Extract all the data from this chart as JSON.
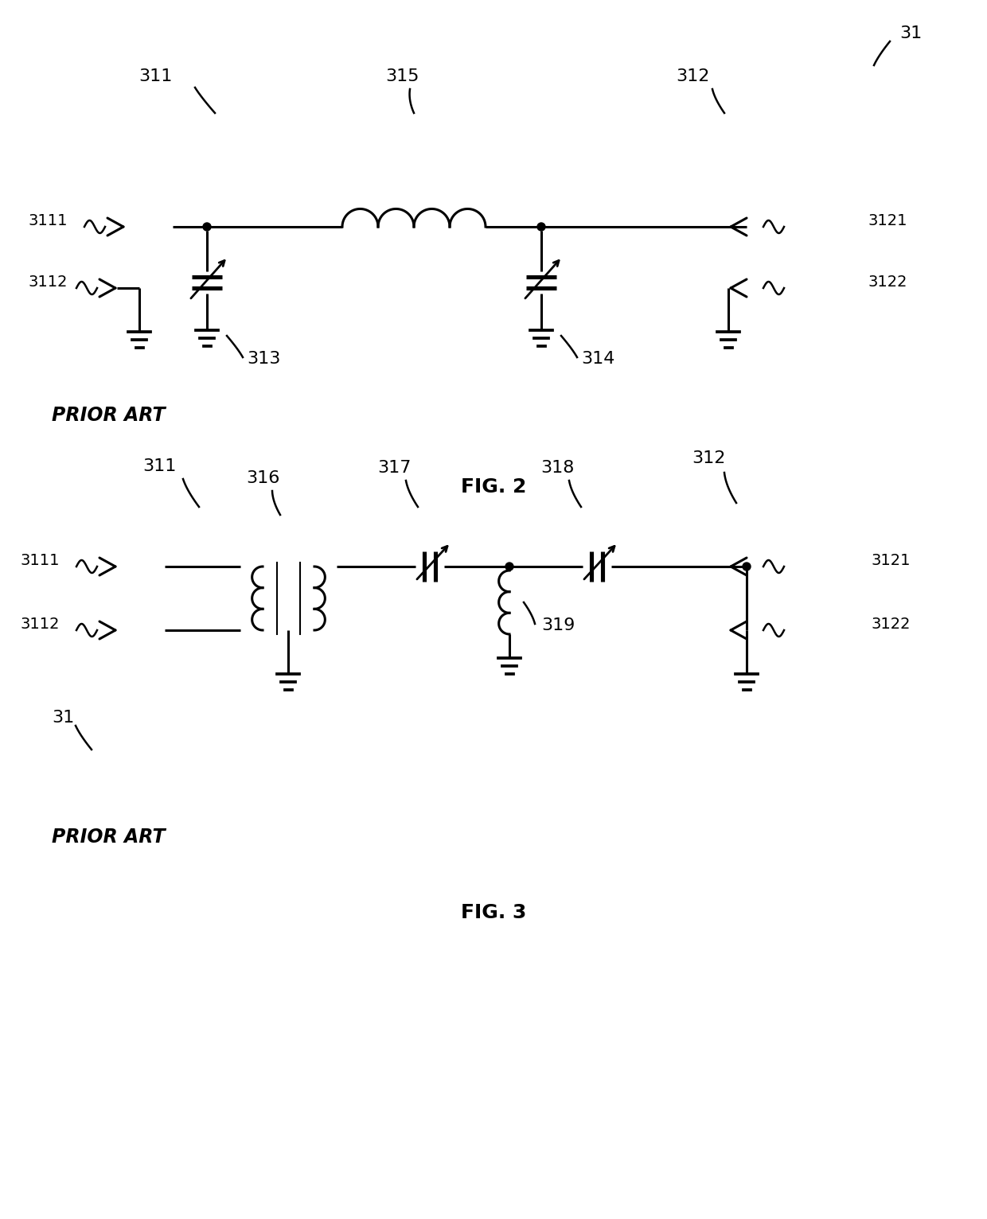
{
  "bg_color": "#ffffff",
  "lc": "#000000",
  "lw": 2.2,
  "lw_thick": 3.5,
  "fs_label": 16,
  "fs_port": 14,
  "fs_title": 18,
  "fig2": {
    "title": "FIG. 2",
    "prior_art": "PRIOR ART",
    "label_31": "31",
    "label_311": "311",
    "label_312": "312",
    "label_315": "315",
    "label_3111": "3111",
    "label_3112": "3112",
    "label_3121": "3121",
    "label_3122": "3122",
    "label_313": "313",
    "label_314": "314"
  },
  "fig3": {
    "title": "FIG. 3",
    "prior_art": "PRIOR ART",
    "label_31": "31",
    "label_311": "311",
    "label_312": "312",
    "label_316": "316",
    "label_317": "317",
    "label_318": "318",
    "label_319": "319",
    "label_3111": "3111",
    "label_3112": "3112",
    "label_3121": "3121",
    "label_3122": "3122"
  }
}
